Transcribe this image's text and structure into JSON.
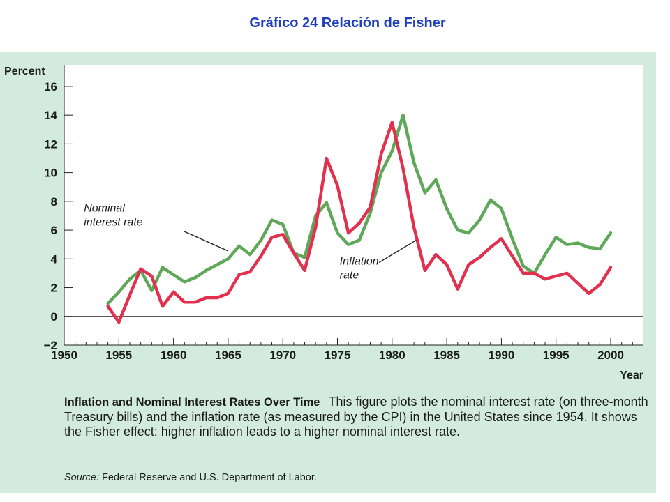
{
  "slide_title": "Gráfico 24 Relación de Fisher",
  "colors": {
    "panel_bg": "#d2ebde",
    "plot_bg": "#ffffff",
    "nominal": "#5fa859",
    "inflation": "#e2314f",
    "title": "#1f3fbf",
    "text": "#1b1b1b"
  },
  "chart_data": {
    "type": "line",
    "ylabel": "Percent",
    "xlabel": "Year",
    "xlim": [
      1950,
      2003
    ],
    "ylim": [
      -2,
      17.5
    ],
    "xticks": [
      1950,
      1955,
      1960,
      1965,
      1970,
      1975,
      1980,
      1985,
      1990,
      1995,
      2000
    ],
    "yticks": [
      -2,
      0,
      2,
      4,
      6,
      8,
      10,
      12,
      14,
      16
    ],
    "ytick_labels": [
      "−2",
      "0",
      "2",
      "4",
      "6",
      "8",
      "10",
      "12",
      "14",
      "16"
    ],
    "grid": false,
    "series": [
      {
        "name": "Nominal interest rate",
        "label_lines": [
          "Nominal",
          "interest rate"
        ],
        "color": "#5fa859",
        "x": [
          1954,
          1955,
          1956,
          1957,
          1958,
          1959,
          1960,
          1961,
          1962,
          1963,
          1964,
          1965,
          1966,
          1967,
          1968,
          1969,
          1970,
          1971,
          1972,
          1973,
          1974,
          1975,
          1976,
          1977,
          1978,
          1979,
          1980,
          1981,
          1982,
          1983,
          1984,
          1985,
          1986,
          1987,
          1988,
          1989,
          1990,
          1991,
          1992,
          1993,
          1994,
          1995,
          1996,
          1997,
          1998,
          1999,
          2000
        ],
        "y": [
          0.9,
          1.7,
          2.6,
          3.2,
          1.8,
          3.4,
          2.9,
          2.4,
          2.7,
          3.2,
          3.6,
          4.0,
          4.9,
          4.3,
          5.3,
          6.7,
          6.4,
          4.4,
          4.1,
          7.0,
          7.9,
          5.8,
          5.0,
          5.3,
          7.2,
          10.0,
          11.5,
          14.0,
          10.7,
          8.6,
          9.5,
          7.5,
          6.0,
          5.8,
          6.7,
          8.1,
          7.5,
          5.4,
          3.5,
          3.0,
          4.3,
          5.5,
          5.0,
          5.1,
          4.8,
          4.7,
          5.8
        ]
      },
      {
        "name": "Inflation rate",
        "label_lines": [
          "Inflation",
          "rate"
        ],
        "color": "#e2314f",
        "x": [
          1954,
          1955,
          1956,
          1957,
          1958,
          1959,
          1960,
          1961,
          1962,
          1963,
          1964,
          1965,
          1966,
          1967,
          1968,
          1969,
          1970,
          1971,
          1972,
          1973,
          1974,
          1975,
          1976,
          1977,
          1978,
          1979,
          1980,
          1981,
          1982,
          1983,
          1984,
          1985,
          1986,
          1987,
          1988,
          1989,
          1990,
          1991,
          1992,
          1993,
          1994,
          1995,
          1996,
          1997,
          1998,
          1999,
          2000
        ],
        "y": [
          0.7,
          -0.4,
          1.5,
          3.3,
          2.8,
          0.7,
          1.7,
          1.0,
          1.0,
          1.3,
          1.3,
          1.6,
          2.9,
          3.1,
          4.2,
          5.5,
          5.7,
          4.4,
          3.2,
          6.2,
          11.0,
          9.1,
          5.8,
          6.5,
          7.6,
          11.3,
          13.5,
          10.3,
          6.2,
          3.2,
          4.3,
          3.6,
          1.9,
          3.6,
          4.1,
          4.8,
          5.4,
          4.2,
          3.0,
          3.0,
          2.6,
          2.8,
          3.0,
          2.3,
          1.6,
          2.2,
          3.4
        ]
      }
    ]
  },
  "caption": {
    "title": "Inflation and Nominal Interest Rates Over Time",
    "text": "This figure plots the nominal interest rate (on three-month Treasury bills) and the inflation rate (as measured by the CPI) in the United States since 1954. It shows the Fisher effect: higher inflation leads to a higher nominal interest rate."
  },
  "source": {
    "label": "Source:",
    "text": "Federal Reserve and U.S. Department of Labor."
  }
}
